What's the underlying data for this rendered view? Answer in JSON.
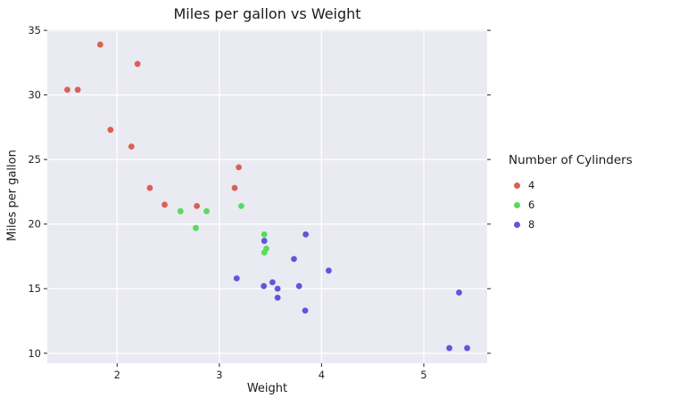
{
  "chart_data": {
    "type": "scatter",
    "title": "Miles per gallon vs Weight",
    "xlabel": "Weight",
    "ylabel": "Miles per gallon",
    "xlim": [
      1.317,
      5.62
    ],
    "ylim": [
      9.225,
      35.075
    ],
    "x_ticks": [
      2,
      3,
      4,
      5
    ],
    "y_ticks": [
      10,
      15,
      20,
      25,
      30,
      35
    ],
    "grid": true,
    "panel_bg": "#EAEAF2",
    "grid_color": "#FFFFFF",
    "tick_color": "#262626",
    "legend_title": "Number of Cylinders",
    "legend_position": "right",
    "series": [
      {
        "name": "4",
        "color": "#DB5F57",
        "points": [
          [
            1.513,
            30.4
          ],
          [
            1.615,
            30.4
          ],
          [
            1.835,
            33.9
          ],
          [
            1.935,
            27.3
          ],
          [
            2.14,
            26.0
          ],
          [
            2.2,
            32.4
          ],
          [
            2.32,
            22.8
          ],
          [
            2.465,
            21.5
          ],
          [
            2.78,
            21.4
          ],
          [
            3.15,
            22.8
          ],
          [
            3.19,
            24.4
          ]
        ]
      },
      {
        "name": "6",
        "color": "#57DB5F",
        "points": [
          [
            2.62,
            21.0
          ],
          [
            2.77,
            19.7
          ],
          [
            2.875,
            21.0
          ],
          [
            3.215,
            21.4
          ],
          [
            3.44,
            19.2
          ],
          [
            3.44,
            17.8
          ],
          [
            3.46,
            18.1
          ]
        ]
      },
      {
        "name": "8",
        "color": "#5F57DB",
        "points": [
          [
            3.17,
            15.8
          ],
          [
            3.435,
            15.2
          ],
          [
            3.44,
            18.7
          ],
          [
            3.52,
            15.5
          ],
          [
            3.57,
            14.3
          ],
          [
            3.57,
            15.0
          ],
          [
            3.73,
            17.3
          ],
          [
            3.78,
            15.2
          ],
          [
            3.84,
            13.3
          ],
          [
            3.845,
            19.2
          ],
          [
            4.07,
            16.4
          ],
          [
            5.25,
            10.4
          ],
          [
            5.345,
            14.7
          ],
          [
            5.424,
            10.4
          ]
        ]
      }
    ]
  }
}
